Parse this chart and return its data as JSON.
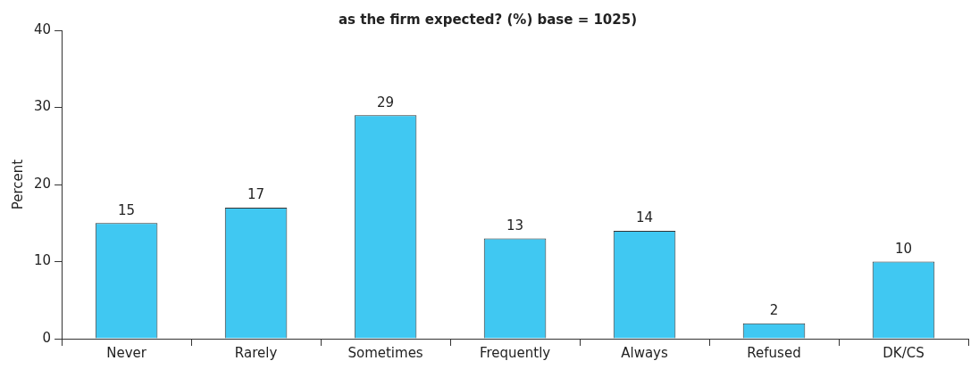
{
  "chart_data": {
    "type": "bar",
    "title": "as the firm expected? (%) base = 1025)",
    "ylabel": "Percent",
    "categories": [
      "Never",
      "Rarely",
      "Sometimes",
      "Frequently",
      "Always",
      "Refused",
      "DK/CS"
    ],
    "values": [
      15,
      17,
      29,
      13,
      14,
      2,
      10
    ],
    "color": "#40c8f2",
    "ylim": [
      0,
      40
    ],
    "yticks": [
      0,
      10,
      20,
      30,
      40
    ],
    "grid": false,
    "data_labels": true,
    "legend": false
  }
}
